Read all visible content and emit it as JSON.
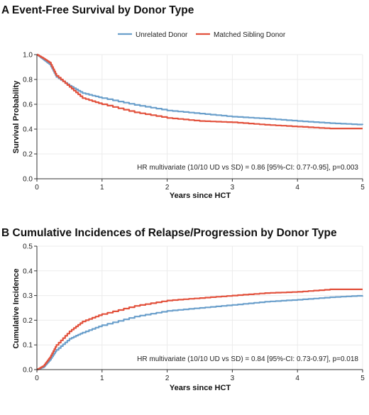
{
  "legend": {
    "items": [
      {
        "label": "Unrelated Donor",
        "color": "#6a9fcb"
      },
      {
        "label": "Matched Sibling Donor",
        "color": "#e2513c"
      }
    ]
  },
  "chart_data": [
    {
      "type": "line",
      "step": true,
      "title": "A Event-Free Survival by Donor Type",
      "xlabel": "Years since HCT",
      "ylabel": "Survival Probability",
      "xlim": [
        0,
        5
      ],
      "ylim": [
        0,
        1
      ],
      "x_ticks": [
        "0",
        "1",
        "2",
        "3",
        "4",
        "5"
      ],
      "y_ticks": [
        "0.0",
        "0.2",
        "0.4",
        "0.6",
        "0.8",
        "1.0"
      ],
      "annotation": "HR multivariate (10/10 UD vs SD) = 0.86 [95%-CI: 0.77-0.95], p=0.003",
      "series": [
        {
          "name": "Unrelated Donor",
          "color": "#6a9fcb",
          "points": [
            [
              0,
              1.0
            ],
            [
              0.1,
              0.96
            ],
            [
              0.2,
              0.92
            ],
            [
              0.3,
              0.82
            ],
            [
              0.5,
              0.75
            ],
            [
              0.7,
              0.69
            ],
            [
              1.0,
              0.65
            ],
            [
              1.5,
              0.595
            ],
            [
              2.0,
              0.55
            ],
            [
              2.5,
              0.525
            ],
            [
              3.0,
              0.5
            ],
            [
              3.5,
              0.485
            ],
            [
              4.0,
              0.465
            ],
            [
              4.5,
              0.448
            ],
            [
              5.0,
              0.435
            ]
          ]
        },
        {
          "name": "Matched Sibling Donor",
          "color": "#e2513c",
          "points": [
            [
              0,
              1.0
            ],
            [
              0.1,
              0.97
            ],
            [
              0.2,
              0.935
            ],
            [
              0.3,
              0.83
            ],
            [
              0.5,
              0.74
            ],
            [
              0.7,
              0.65
            ],
            [
              1.0,
              0.6
            ],
            [
              1.5,
              0.535
            ],
            [
              2.0,
              0.49
            ],
            [
              2.5,
              0.465
            ],
            [
              3.0,
              0.455
            ],
            [
              3.5,
              0.435
            ],
            [
              4.0,
              0.42
            ],
            [
              4.5,
              0.405
            ],
            [
              5.0,
              0.405
            ]
          ]
        }
      ]
    },
    {
      "type": "line",
      "step": true,
      "title": "B Cumulative Incidences of Relapse/Progression by Donor Type",
      "xlabel": "Years since HCT",
      "ylabel": "Cumulative Incidence",
      "xlim": [
        0,
        5
      ],
      "ylim": [
        0,
        0.5
      ],
      "x_ticks": [
        "0",
        "1",
        "2",
        "3",
        "4",
        "5"
      ],
      "y_ticks": [
        "0.0",
        "0.1",
        "0.2",
        "0.3",
        "0.4",
        "0.5"
      ],
      "annotation": "HR multivariate (10/10 UD vs SD) = 0.84 [95%-CI: 0.73-0.97], p=0.018",
      "series": [
        {
          "name": "Unrelated Donor",
          "color": "#6a9fcb",
          "points": [
            [
              0,
              0
            ],
            [
              0.1,
              0.01
            ],
            [
              0.2,
              0.04
            ],
            [
              0.3,
              0.08
            ],
            [
              0.5,
              0.125
            ],
            [
              0.7,
              0.15
            ],
            [
              1.0,
              0.18
            ],
            [
              1.5,
              0.215
            ],
            [
              2.0,
              0.238
            ],
            [
              2.5,
              0.25
            ],
            [
              3.0,
              0.262
            ],
            [
              3.5,
              0.275
            ],
            [
              4.0,
              0.283
            ],
            [
              4.5,
              0.293
            ],
            [
              5.0,
              0.3
            ]
          ]
        },
        {
          "name": "Matched Sibling Donor",
          "color": "#e2513c",
          "points": [
            [
              0,
              0
            ],
            [
              0.1,
              0.015
            ],
            [
              0.2,
              0.05
            ],
            [
              0.3,
              0.1
            ],
            [
              0.5,
              0.155
            ],
            [
              0.7,
              0.195
            ],
            [
              1.0,
              0.225
            ],
            [
              1.5,
              0.258
            ],
            [
              2.0,
              0.28
            ],
            [
              2.5,
              0.29
            ],
            [
              3.0,
              0.3
            ],
            [
              3.5,
              0.31
            ],
            [
              4.0,
              0.315
            ],
            [
              4.5,
              0.325
            ],
            [
              5.0,
              0.325
            ]
          ]
        }
      ]
    }
  ]
}
